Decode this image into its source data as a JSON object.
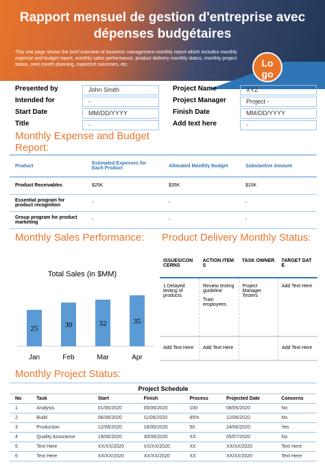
{
  "header": {
    "title": "Rapport mensuel de gestion d'entreprise avec dépenses budgétaires",
    "description": "This one page shows the brief overview of business management monthly report which includes monthly expense and budget report, monthly sales performance, product delivery monthly status, monthly project status, next month planning, expected outcomes, etc.",
    "logo": "Logo"
  },
  "info": {
    "left": [
      [
        "Presented by",
        "John Smith"
      ],
      [
        "Intended for",
        "-"
      ],
      [
        "Start Date",
        "MM/DD/YYYY"
      ],
      [
        "Title",
        "-"
      ]
    ],
    "right": [
      [
        "Project Name",
        "XYZ"
      ],
      [
        "Project Manager",
        "Project -"
      ],
      [
        "Finish Date",
        "MM/DD/YYYY"
      ],
      [
        "Add text here",
        "-"
      ]
    ]
  },
  "expense": {
    "title": "Monthly Expense and Budget Report:",
    "headers": [
      "Product",
      "Estimated Expenses for Each Product",
      "Allocated Monthly Budget",
      "Substantive Amount"
    ],
    "rows": [
      [
        "Product Receivables",
        "$25K",
        "$35K",
        "$10K"
      ],
      [
        "Essential program for product recognition",
        "-",
        "-",
        "-"
      ],
      [
        "Group program for product marketing",
        "-",
        "-",
        "-"
      ]
    ]
  },
  "sales": {
    "title": "Monthly Sales Performance:",
    "chart_data": {
      "type": "bar",
      "title": "Total Sales (in $MM)",
      "categories": [
        "Jan",
        "Feb",
        "Mar",
        "Apr"
      ],
      "values": [
        25,
        30,
        32,
        35
      ],
      "color": "#5b9bd5",
      "ylim": [
        0,
        40
      ]
    }
  },
  "delivery": {
    "title": "Product Delivery Monthly Status:",
    "headers": [
      "ISSUES/CONCERNS",
      "ACTION ITEMS",
      "TASK OWNER",
      "TARGET DATE"
    ],
    "rows": [
      [
        [
          "1.Delayed testing of products"
        ],
        [
          "Review testing guideline",
          "Train employees"
        ],
        [
          "Project Manager Testers"
        ],
        [
          "Add Text Here"
        ]
      ],
      [
        [
          "Add Text Here"
        ],
        [
          "Add Text Here"
        ],
        null,
        [
          "Add Text Here"
        ]
      ]
    ]
  },
  "project": {
    "title": "Monthly Project Status:",
    "table_title": "Project Schedule",
    "headers": [
      "No",
      "Task",
      "Start",
      "Finish",
      "Process",
      "Projected Date",
      "Concerns"
    ],
    "rows": [
      [
        "1",
        "Analysis",
        "01/06/2020",
        "05/06/2020",
        "100",
        "08/06/2020",
        "No"
      ],
      [
        "2",
        "Build",
        "06/06/2020",
        "11/06/2020",
        "85%",
        "12/06/2020",
        "No"
      ],
      [
        "3",
        "Production",
        "12/06/2020",
        "18/06/2020",
        "50",
        "24/06/2020",
        "Yes"
      ],
      [
        "4",
        "Quality Assurance",
        "19/06/2020",
        "30/06/2020",
        "XX",
        "05/07/2020",
        "No"
      ],
      [
        "5",
        "Text Here",
        "XX/XX/2020",
        "XX/XX/2020",
        "XX",
        "XX/XX/2020",
        "Text Here"
      ],
      [
        "6",
        "Text Here",
        "XX/XX/2020",
        "XX/XX/2020",
        "XX",
        "XX/XX/2020",
        "Text Here"
      ]
    ]
  }
}
